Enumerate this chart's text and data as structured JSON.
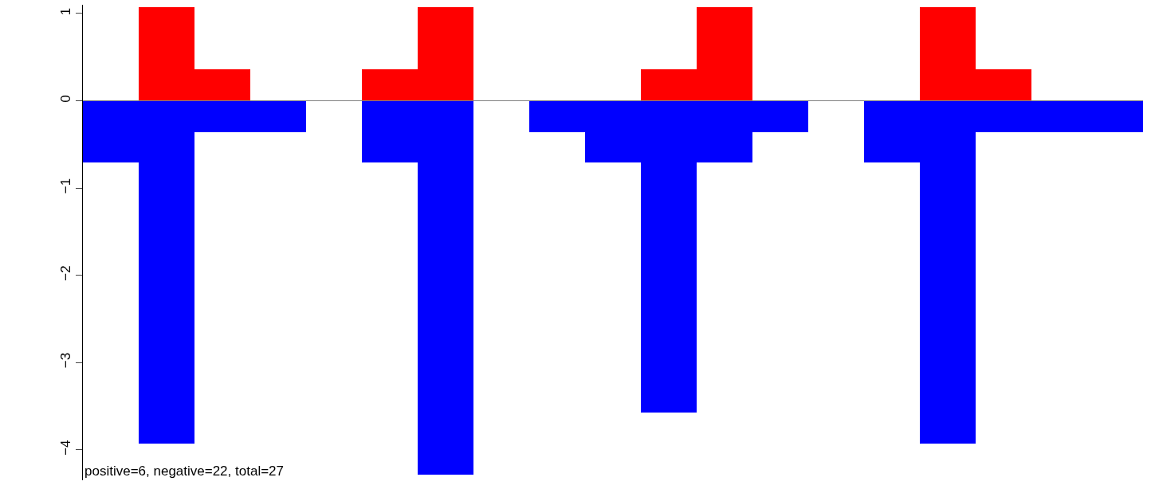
{
  "chart_data": {
    "type": "bar",
    "stacked": true,
    "categories": [
      null,
      null,
      null,
      null,
      null,
      null,
      null,
      null,
      null,
      null,
      null,
      null,
      null,
      null,
      null,
      null,
      null,
      null,
      null
    ],
    "series": [
      {
        "color": "#ff0000",
        "values": [
          0,
          1.07,
          0.36,
          0,
          0,
          0.36,
          1.07,
          0,
          0,
          0,
          0.36,
          1.07,
          0,
          0,
          0,
          1.07,
          0.36,
          0,
          0
        ]
      },
      {
        "color": "#0000ff",
        "values": [
          -0.71,
          -3.93,
          -0.36,
          -0.36,
          0,
          -0.71,
          -4.29,
          0,
          -0.36,
          -0.71,
          -3.57,
          -0.71,
          -0.36,
          0,
          -0.71,
          -3.93,
          -0.36,
          -0.36,
          -0.36
        ]
      }
    ],
    "ylim": [
      -4.35,
      1.1
    ],
    "yticks": [
      -4,
      -3,
      -2,
      -1,
      0,
      1
    ],
    "tick_labels": "y",
    "ref_lines": [
      {
        "axis": "y",
        "value": 0,
        "color": "#808080"
      }
    ],
    "annotations": [
      "positive=6, negative=22, total=27"
    ]
  }
}
